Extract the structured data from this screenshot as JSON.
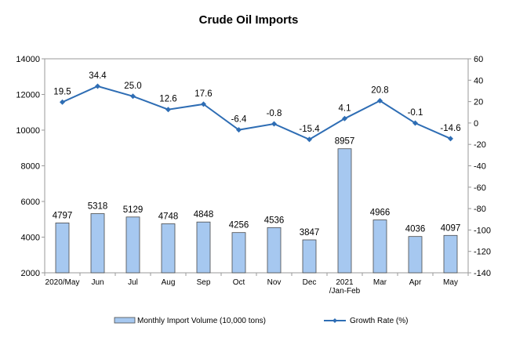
{
  "chart_data": {
    "type": "bar+line",
    "title": "Crude Oil Imports",
    "categories": [
      [
        "2020/May"
      ],
      [
        "Jun"
      ],
      [
        "Jul"
      ],
      [
        "Aug"
      ],
      [
        "Sep"
      ],
      [
        "Oct"
      ],
      [
        "Nov"
      ],
      [
        "Dec"
      ],
      [
        "2021",
        "/Jan-Feb"
      ],
      [
        "Mar"
      ],
      [
        "Apr"
      ],
      [
        "May"
      ]
    ],
    "series": [
      {
        "name": "Monthly Import Volume (10,000 tons)",
        "type": "bar",
        "axis": "left",
        "color": "#a6c8f0",
        "values": [
          4797,
          5318,
          5129,
          4748,
          4848,
          4256,
          4536,
          3847,
          8957,
          4966,
          4036,
          4097
        ]
      },
      {
        "name": "Growth Rate (%)",
        "type": "line",
        "axis": "right",
        "color": "#2e6db4",
        "values": [
          19.5,
          34.4,
          25.0,
          12.6,
          17.6,
          -6.4,
          -0.8,
          -15.4,
          4.1,
          20.8,
          -0.1,
          -14.6
        ],
        "labels": [
          "19.5",
          "34.4",
          "25.0",
          "12.6",
          "17.6",
          "-6.4",
          "-0.8",
          "-15.4",
          "4.1",
          "20.8",
          "-0.1",
          "-14.6"
        ]
      }
    ],
    "left_axis": {
      "min": 2000,
      "max": 14000,
      "ticks": [
        2000,
        4000,
        6000,
        8000,
        10000,
        12000,
        14000
      ]
    },
    "right_axis": {
      "min": -140,
      "max": 60,
      "ticks": [
        -140,
        -120,
        -100,
        -80,
        -60,
        -40,
        -20,
        0,
        20,
        40,
        60
      ]
    },
    "grid": false,
    "legend_position": "bottom"
  }
}
